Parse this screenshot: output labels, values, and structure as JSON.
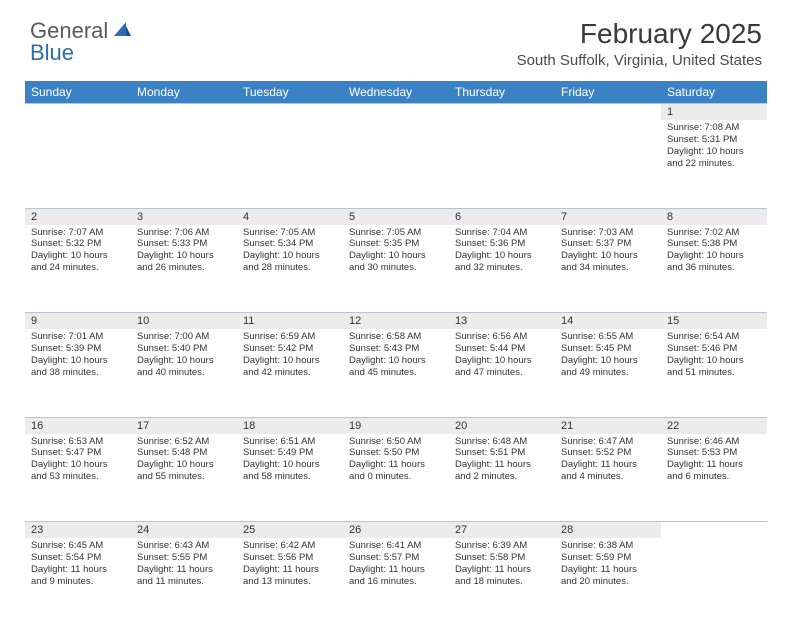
{
  "logo": {
    "text1": "General",
    "text2": "Blue"
  },
  "title": "February 2025",
  "location": "South Suffolk, Virginia, United States",
  "colors": {
    "header_bg": "#3b82c4",
    "header_fg": "#ffffff",
    "daynum_bg": "#ececec",
    "grid_line": "#b8c4d0",
    "logo_blue": "#2a6db8"
  },
  "day_headers": [
    "Sunday",
    "Monday",
    "Tuesday",
    "Wednesday",
    "Thursday",
    "Friday",
    "Saturday"
  ],
  "weeks": [
    [
      null,
      null,
      null,
      null,
      null,
      null,
      {
        "n": "1",
        "sr": "Sunrise: 7:08 AM",
        "ss": "Sunset: 5:31 PM",
        "dl": "Daylight: 10 hours and 22 minutes."
      }
    ],
    [
      {
        "n": "2",
        "sr": "Sunrise: 7:07 AM",
        "ss": "Sunset: 5:32 PM",
        "dl": "Daylight: 10 hours and 24 minutes."
      },
      {
        "n": "3",
        "sr": "Sunrise: 7:06 AM",
        "ss": "Sunset: 5:33 PM",
        "dl": "Daylight: 10 hours and 26 minutes."
      },
      {
        "n": "4",
        "sr": "Sunrise: 7:05 AM",
        "ss": "Sunset: 5:34 PM",
        "dl": "Daylight: 10 hours and 28 minutes."
      },
      {
        "n": "5",
        "sr": "Sunrise: 7:05 AM",
        "ss": "Sunset: 5:35 PM",
        "dl": "Daylight: 10 hours and 30 minutes."
      },
      {
        "n": "6",
        "sr": "Sunrise: 7:04 AM",
        "ss": "Sunset: 5:36 PM",
        "dl": "Daylight: 10 hours and 32 minutes."
      },
      {
        "n": "7",
        "sr": "Sunrise: 7:03 AM",
        "ss": "Sunset: 5:37 PM",
        "dl": "Daylight: 10 hours and 34 minutes."
      },
      {
        "n": "8",
        "sr": "Sunrise: 7:02 AM",
        "ss": "Sunset: 5:38 PM",
        "dl": "Daylight: 10 hours and 36 minutes."
      }
    ],
    [
      {
        "n": "9",
        "sr": "Sunrise: 7:01 AM",
        "ss": "Sunset: 5:39 PM",
        "dl": "Daylight: 10 hours and 38 minutes."
      },
      {
        "n": "10",
        "sr": "Sunrise: 7:00 AM",
        "ss": "Sunset: 5:40 PM",
        "dl": "Daylight: 10 hours and 40 minutes."
      },
      {
        "n": "11",
        "sr": "Sunrise: 6:59 AM",
        "ss": "Sunset: 5:42 PM",
        "dl": "Daylight: 10 hours and 42 minutes."
      },
      {
        "n": "12",
        "sr": "Sunrise: 6:58 AM",
        "ss": "Sunset: 5:43 PM",
        "dl": "Daylight: 10 hours and 45 minutes."
      },
      {
        "n": "13",
        "sr": "Sunrise: 6:56 AM",
        "ss": "Sunset: 5:44 PM",
        "dl": "Daylight: 10 hours and 47 minutes."
      },
      {
        "n": "14",
        "sr": "Sunrise: 6:55 AM",
        "ss": "Sunset: 5:45 PM",
        "dl": "Daylight: 10 hours and 49 minutes."
      },
      {
        "n": "15",
        "sr": "Sunrise: 6:54 AM",
        "ss": "Sunset: 5:46 PM",
        "dl": "Daylight: 10 hours and 51 minutes."
      }
    ],
    [
      {
        "n": "16",
        "sr": "Sunrise: 6:53 AM",
        "ss": "Sunset: 5:47 PM",
        "dl": "Daylight: 10 hours and 53 minutes."
      },
      {
        "n": "17",
        "sr": "Sunrise: 6:52 AM",
        "ss": "Sunset: 5:48 PM",
        "dl": "Daylight: 10 hours and 55 minutes."
      },
      {
        "n": "18",
        "sr": "Sunrise: 6:51 AM",
        "ss": "Sunset: 5:49 PM",
        "dl": "Daylight: 10 hours and 58 minutes."
      },
      {
        "n": "19",
        "sr": "Sunrise: 6:50 AM",
        "ss": "Sunset: 5:50 PM",
        "dl": "Daylight: 11 hours and 0 minutes."
      },
      {
        "n": "20",
        "sr": "Sunrise: 6:48 AM",
        "ss": "Sunset: 5:51 PM",
        "dl": "Daylight: 11 hours and 2 minutes."
      },
      {
        "n": "21",
        "sr": "Sunrise: 6:47 AM",
        "ss": "Sunset: 5:52 PM",
        "dl": "Daylight: 11 hours and 4 minutes."
      },
      {
        "n": "22",
        "sr": "Sunrise: 6:46 AM",
        "ss": "Sunset: 5:53 PM",
        "dl": "Daylight: 11 hours and 6 minutes."
      }
    ],
    [
      {
        "n": "23",
        "sr": "Sunrise: 6:45 AM",
        "ss": "Sunset: 5:54 PM",
        "dl": "Daylight: 11 hours and 9 minutes."
      },
      {
        "n": "24",
        "sr": "Sunrise: 6:43 AM",
        "ss": "Sunset: 5:55 PM",
        "dl": "Daylight: 11 hours and 11 minutes."
      },
      {
        "n": "25",
        "sr": "Sunrise: 6:42 AM",
        "ss": "Sunset: 5:56 PM",
        "dl": "Daylight: 11 hours and 13 minutes."
      },
      {
        "n": "26",
        "sr": "Sunrise: 6:41 AM",
        "ss": "Sunset: 5:57 PM",
        "dl": "Daylight: 11 hours and 16 minutes."
      },
      {
        "n": "27",
        "sr": "Sunrise: 6:39 AM",
        "ss": "Sunset: 5:58 PM",
        "dl": "Daylight: 11 hours and 18 minutes."
      },
      {
        "n": "28",
        "sr": "Sunrise: 6:38 AM",
        "ss": "Sunset: 5:59 PM",
        "dl": "Daylight: 11 hours and 20 minutes."
      },
      null
    ]
  ]
}
